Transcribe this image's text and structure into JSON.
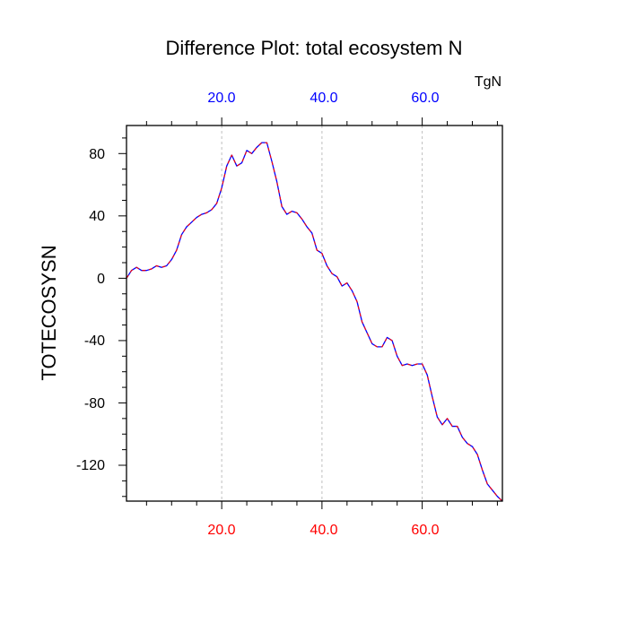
{
  "chart_data": {
    "type": "line",
    "title": "Difference Plot: total ecosystem N",
    "xlabel": "",
    "ylabel": "TOTECOSYSN",
    "units_label": "TgN",
    "xlim": [
      1,
      76
    ],
    "ylim": [
      -143,
      98
    ],
    "bottom_x_ticks": [
      "20.0",
      "40.0",
      "60.0"
    ],
    "top_x_ticks": [
      "20.0",
      "40.0",
      "60.0"
    ],
    "y_ticks": [
      "80",
      "40",
      "0",
      "-40",
      "-80",
      "-120"
    ],
    "grid": "vertical dashed at major x ticks",
    "colors": {
      "bottom_tick_labels": "#ff0000",
      "top_tick_labels": "#0000ff",
      "series_primary": "#0000ff",
      "series_overlay": "#ff0000",
      "axis": "#000000",
      "grid": "#bfbfbf"
    },
    "series": [
      {
        "name": "difference",
        "x": [
          1,
          2,
          3,
          4,
          5,
          6,
          7,
          8,
          9,
          10,
          11,
          12,
          13,
          14,
          15,
          16,
          17,
          18,
          19,
          20,
          21,
          22,
          23,
          24,
          25,
          26,
          27,
          28,
          29,
          30,
          31,
          32,
          33,
          34,
          35,
          36,
          37,
          38,
          39,
          40,
          41,
          42,
          43,
          44,
          45,
          46,
          47,
          48,
          49,
          50,
          51,
          52,
          53,
          54,
          55,
          56,
          57,
          58,
          59,
          60,
          61,
          62,
          63,
          64,
          65,
          66,
          67,
          68,
          69,
          70,
          71,
          72,
          73,
          74,
          75,
          76
        ],
        "values": [
          0,
          5,
          7,
          5,
          5,
          6,
          8,
          7,
          8,
          12,
          18,
          28,
          33,
          36,
          39,
          41,
          42,
          44,
          48,
          58,
          72,
          79,
          72,
          74,
          82,
          80,
          84,
          87,
          87,
          75,
          62,
          46,
          41,
          43,
          42,
          38,
          33,
          29,
          18,
          16,
          8,
          3,
          1,
          -5,
          -3,
          -8,
          -15,
          -28,
          -35,
          -42,
          -44,
          -44,
          -38,
          -40,
          -50,
          -56,
          -55,
          -56,
          -55,
          -55,
          -62,
          -76,
          -89,
          -94,
          -90,
          -95,
          -95,
          -102,
          -106,
          -108,
          -113,
          -123,
          -132,
          -136,
          -140,
          -143
        ]
      }
    ]
  }
}
